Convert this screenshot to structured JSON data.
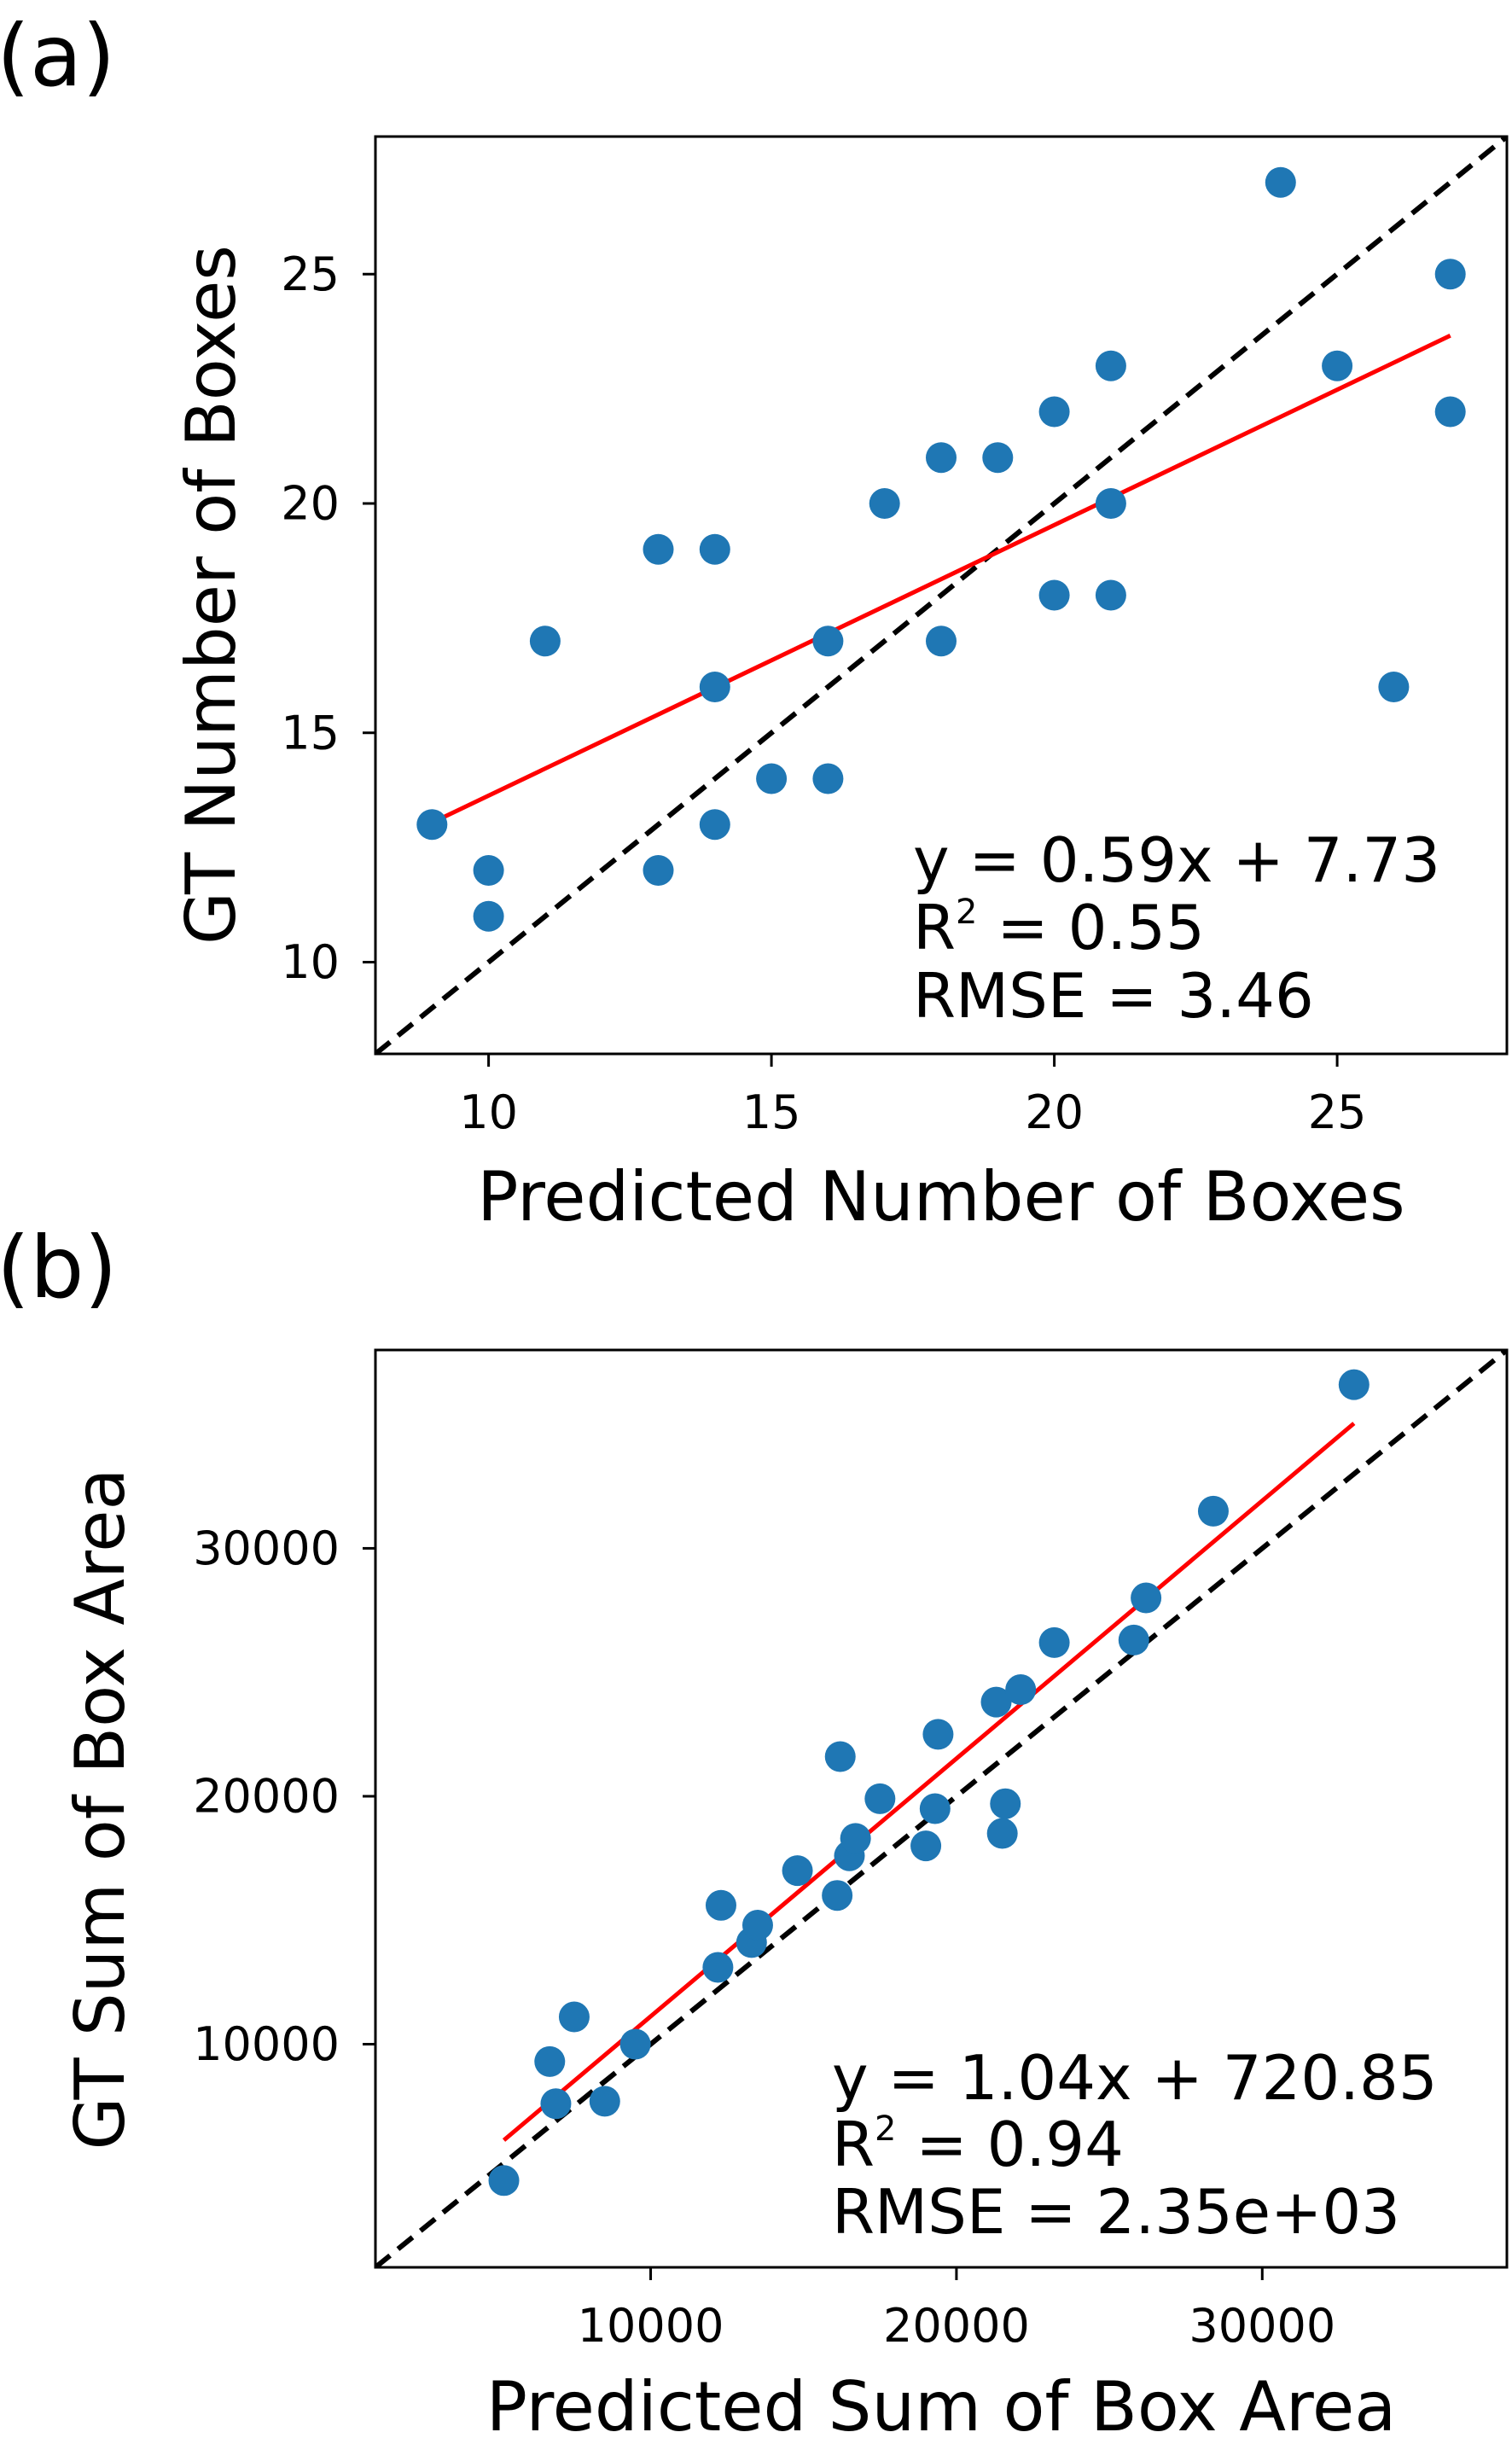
{
  "chart_data": [
    {
      "panel_label": "(a)",
      "type": "scatter",
      "xlabel": "Predicted Number of Boxes",
      "ylabel": "GT Number of Boxes",
      "xlim": [
        8,
        28
      ],
      "ylim": [
        8,
        28
      ],
      "xticks": [
        10,
        15,
        20,
        25
      ],
      "yticks": [
        10,
        15,
        20,
        25
      ],
      "xtick_labels": [
        "10",
        "15",
        "20",
        "25"
      ],
      "ytick_labels": [
        "10",
        "15",
        "20",
        "25"
      ],
      "grid": false,
      "point_color": "#1f77b4",
      "fit_color": "#ff0000",
      "identity_color": "#000000",
      "points": [
        [
          9,
          13
        ],
        [
          10,
          12
        ],
        [
          10,
          11
        ],
        [
          11,
          17
        ],
        [
          13,
          19
        ],
        [
          13,
          12
        ],
        [
          14,
          19
        ],
        [
          14,
          16
        ],
        [
          14,
          13
        ],
        [
          15,
          14
        ],
        [
          16,
          17
        ],
        [
          16,
          14
        ],
        [
          17,
          20
        ],
        [
          18,
          21
        ],
        [
          18,
          17
        ],
        [
          19,
          21
        ],
        [
          20,
          22
        ],
        [
          20,
          18
        ],
        [
          21,
          23
        ],
        [
          21,
          20
        ],
        [
          21,
          18
        ],
        [
          24,
          27
        ],
        [
          25,
          23
        ],
        [
          26,
          16
        ],
        [
          27,
          25
        ],
        [
          27,
          22
        ]
      ],
      "fit": {
        "slope": 0.59,
        "intercept": 7.73,
        "x_range": [
          9,
          27
        ]
      },
      "annotation": {
        "equation": "y = 0.59x + 7.73",
        "r2_prefix": "R",
        "r2_sup": "2",
        "r2_value": " = 0.55",
        "rmse": "RMSE = 3.46"
      }
    },
    {
      "panel_label": "(b)",
      "type": "scatter",
      "xlabel": "Predicted Sum of Box Area",
      "ylabel": "GT Sum of Box Area",
      "xlim": [
        1000,
        38000
      ],
      "ylim": [
        1000,
        38000
      ],
      "xticks": [
        10000,
        20000,
        30000
      ],
      "yticks": [
        10000,
        20000,
        30000
      ],
      "xtick_labels": [
        "10000",
        "20000",
        "30000"
      ],
      "ytick_labels": [
        "10000",
        "20000",
        "30000"
      ],
      "grid": false,
      "point_color": "#1f77b4",
      "fit_color": "#ff0000",
      "identity_color": "#000000",
      "points": [
        [
          5200,
          4500
        ],
        [
          6700,
          9300
        ],
        [
          6900,
          7600
        ],
        [
          7500,
          11100
        ],
        [
          8500,
          7700
        ],
        [
          9500,
          10000
        ],
        [
          12200,
          13100
        ],
        [
          12300,
          15600
        ],
        [
          13300,
          14100
        ],
        [
          13500,
          14800
        ],
        [
          14800,
          17000
        ],
        [
          16100,
          16000
        ],
        [
          16200,
          21600
        ],
        [
          16500,
          17600
        ],
        [
          16700,
          18300
        ],
        [
          17500,
          19900
        ],
        [
          19000,
          18000
        ],
        [
          19300,
          19500
        ],
        [
          19400,
          22500
        ],
        [
          21300,
          23800
        ],
        [
          21500,
          18500
        ],
        [
          21600,
          19700
        ],
        [
          22100,
          24300
        ],
        [
          23200,
          26200
        ],
        [
          25800,
          26300
        ],
        [
          26200,
          28000
        ],
        [
          28400,
          31500
        ],
        [
          33000,
          36600
        ]
      ],
      "fit": {
        "slope": 1.04,
        "intercept": 720.85,
        "x_range": [
          5200,
          33000
        ]
      },
      "annotation": {
        "equation": "y = 1.04x + 720.85",
        "r2_prefix": "R",
        "r2_sup": "2",
        "r2_value": " = 0.94",
        "rmse": "RMSE = 2.35e+03"
      }
    }
  ]
}
